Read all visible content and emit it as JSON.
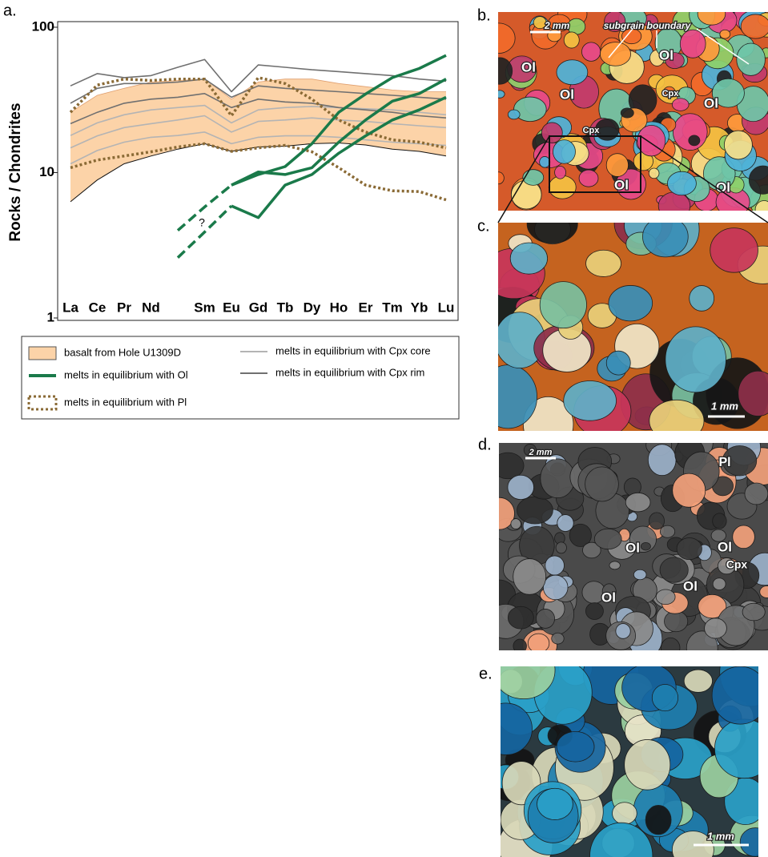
{
  "chart_data": {
    "type": "line",
    "panel": "a.",
    "y_label": "Rocks / Chondrites",
    "log_y": true,
    "categories": [
      "La",
      "Ce",
      "Pr",
      "Nd",
      null,
      "Sm",
      "Eu",
      "Gd",
      "Tb",
      "Dy",
      "Ho",
      "Er",
      "Tm",
      "Yb",
      "Lu"
    ],
    "ylim": [
      1,
      100
    ],
    "yticks": [
      1,
      10,
      100
    ],
    "legend": "bottom",
    "annotation": "?",
    "series": [
      {
        "name": "basalt from Hole U1309D",
        "style": "band",
        "color": "#fcd3a8",
        "upper": [
          26,
          34,
          38,
          42,
          43,
          44,
          32,
          42,
          44,
          44,
          41,
          39,
          37,
          36,
          36
        ],
        "lower": [
          6.3,
          8.9,
          11.5,
          13,
          14.5,
          15.8,
          14,
          15,
          15.2,
          15.8,
          16,
          15.5,
          14.5,
          14,
          13
        ]
      },
      {
        "name": "melts in equilibrium with Ol",
        "style": "solid",
        "color": "#1a7a4a",
        "lines": [
          [
            null,
            null,
            null,
            null,
            null,
            null,
            8.2,
            9.7,
            11,
            15.8,
            26,
            34.7,
            45,
            52,
            64
          ],
          [
            null,
            null,
            null,
            null,
            null,
            null,
            8.2,
            10.1,
            9.7,
            10.8,
            16.2,
            23,
            31,
            35,
            44
          ],
          [
            null,
            null,
            null,
            null,
            null,
            null,
            5.9,
            4.9,
            8.2,
            9.7,
            13.6,
            17.9,
            23,
            27,
            33
          ]
        ],
        "extrapolations": [
          [
            null,
            null,
            null,
            null,
            4.0,
            5.8,
            8.2,
            null,
            null,
            null,
            null,
            null,
            null,
            null,
            null
          ],
          [
            null,
            null,
            null,
            null,
            2.6,
            3.9,
            5.9,
            null,
            null,
            null,
            null,
            null,
            null,
            null,
            null
          ]
        ]
      },
      {
        "name": "melts in equilibrium with Pl",
        "style": "dotted",
        "color": "#8a6a35",
        "lines": [
          [
            26,
            40,
            44,
            43,
            44,
            44,
            24.6,
            45,
            41,
            32,
            23,
            19,
            16.8,
            16.2,
            14.8
          ],
          [
            10.8,
            12.2,
            13,
            13.9,
            15,
            15.8,
            14,
            14.8,
            15.4,
            13.9,
            10.8,
            8.2,
            7.5,
            7.4,
            6.5
          ]
        ]
      },
      {
        "name": "melts in equilibrium with Cpx core",
        "style": "solid",
        "color": "#b4b4b4",
        "lines": [
          [
            14.8,
            17.9,
            20.4,
            21.7,
            23,
            24.6,
            19,
            22.5,
            23,
            23.8,
            23,
            22.5,
            21.7,
            21,
            20.4
          ],
          [
            11.5,
            14.2,
            16.2,
            17.5,
            18,
            19,
            15.8,
            17.5,
            17.9,
            17.9,
            17.5,
            16.8,
            16.2,
            15.8,
            15.4
          ],
          [
            18,
            22,
            25,
            27,
            28,
            29,
            22,
            27,
            28,
            28.5,
            28,
            27.5,
            27,
            26,
            25
          ]
        ]
      },
      {
        "name": "melts in equilibrium with Cpx rim",
        "style": "solid",
        "color": "#707070",
        "lines": [
          [
            39.5,
            48,
            45,
            46.5,
            53,
            60,
            36,
            55,
            53,
            51,
            49.5,
            48,
            46.5,
            44,
            42.5
          ],
          [
            30,
            38,
            41,
            41,
            42,
            44,
            33,
            39.5,
            38,
            37,
            36,
            35,
            34,
            33,
            32
          ],
          [
            21.7,
            26,
            30,
            32,
            33,
            35,
            28,
            32,
            30.6,
            30,
            28,
            27,
            26,
            24.6,
            23.8
          ]
        ]
      }
    ]
  },
  "photos": [
    {
      "label": "b.",
      "texts": [
        "2 mm",
        "subgrain boundary",
        "Ol",
        "Ol",
        "Ol",
        "Ol",
        "Ol",
        "Ol",
        "Cpx",
        "Cpx"
      ]
    },
    {
      "label": "c.",
      "texts": [
        "1 mm"
      ]
    },
    {
      "label": "d.",
      "texts": [
        "2 mm",
        "Pl",
        "Ol",
        "Ol",
        "Ol",
        "Ol",
        "Cpx"
      ]
    },
    {
      "label": "e.",
      "texts": [
        "1 mm"
      ]
    }
  ]
}
